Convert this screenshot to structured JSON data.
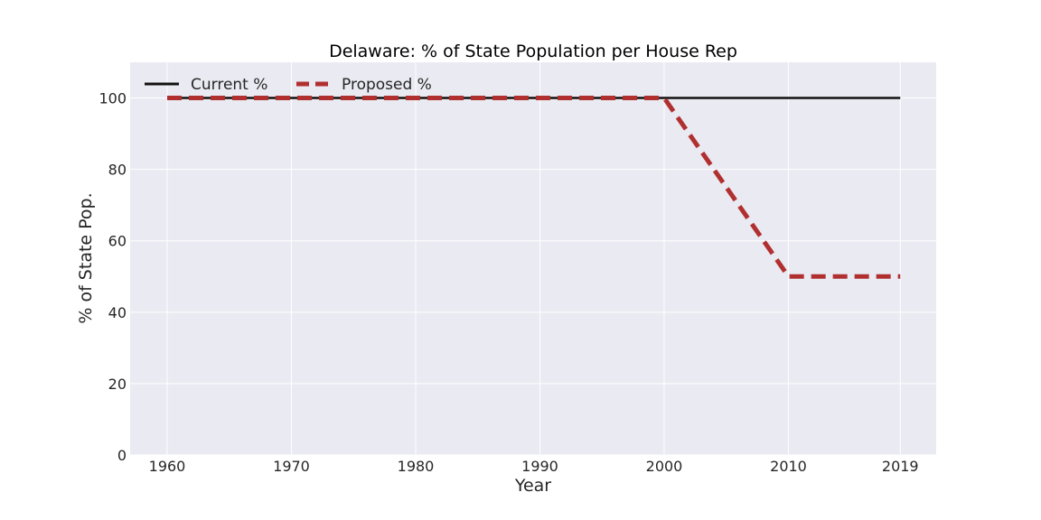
{
  "chart_data": {
    "type": "line",
    "title": "Delaware: % of State Population per House Rep",
    "xlabel": "Year",
    "ylabel": "% of State Pop.",
    "x": [
      1960,
      1970,
      1980,
      1990,
      2000,
      2010,
      2019
    ],
    "x_tick_labels": [
      "1960",
      "1970",
      "1980",
      "1990",
      "2000",
      "2010",
      "2019"
    ],
    "y_ticks": [
      0,
      20,
      40,
      60,
      80,
      100
    ],
    "y_tick_labels": [
      "0",
      "20",
      "40",
      "60",
      "80",
      "100"
    ],
    "ylim": [
      0,
      110
    ],
    "grid": true,
    "legend_position": "top-left",
    "series": [
      {
        "name": "Current %",
        "values": [
          100,
          100,
          100,
          100,
          100,
          100,
          100
        ],
        "color": "#111111",
        "style": "solid"
      },
      {
        "name": "Proposed %",
        "values": [
          100,
          100,
          100,
          100,
          100,
          50,
          50
        ],
        "color": "#b03030",
        "style": "dashed"
      }
    ],
    "plot_background": "#eaeaf2"
  }
}
